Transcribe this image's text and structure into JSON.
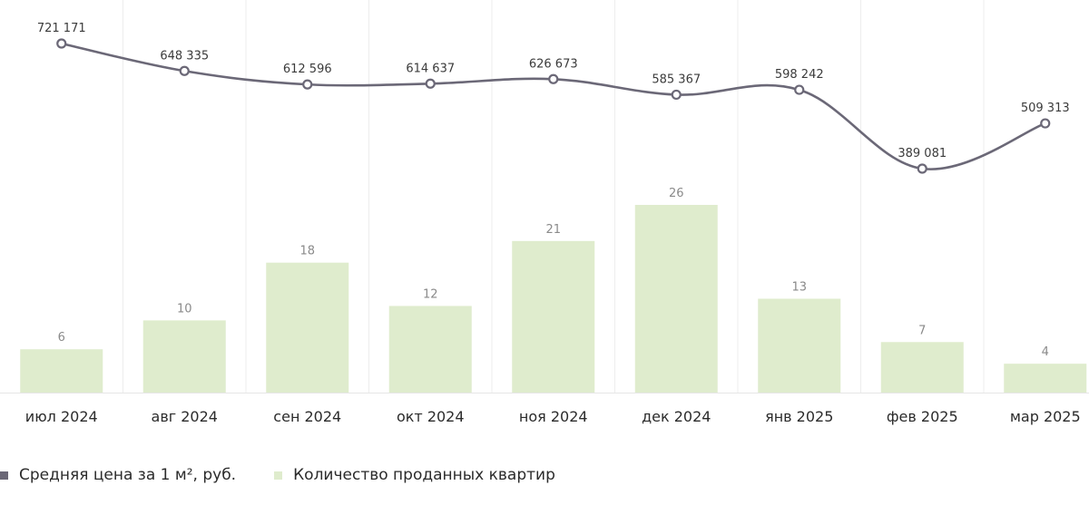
{
  "chart_data": {
    "type": "bar",
    "categories": [
      "июл 2024",
      "авг 2024",
      "сен 2024",
      "окт 2024",
      "ноя 2024",
      "дек 2024",
      "янв 2025",
      "фев 2025",
      "мар 2025"
    ],
    "series": [
      {
        "name": "Количество проданных квартир",
        "type": "bar",
        "values": [
          6,
          10,
          18,
          12,
          21,
          26,
          13,
          7,
          4
        ],
        "labels": [
          "6",
          "10",
          "18",
          "12",
          "21",
          "26",
          "13",
          "7",
          "4"
        ],
        "color": "#dfeccd"
      },
      {
        "name": "Средняя цена за 1 м², руб.",
        "type": "line",
        "values": [
          721171,
          648335,
          612596,
          614637,
          626673,
          585367,
          598242,
          389081,
          509313
        ],
        "labels": [
          "721 171",
          "648 335",
          "612 596",
          "614 637",
          "626 673",
          "585 367",
          "598 242",
          "389 081",
          "509 313"
        ],
        "color": "#6b6877"
      }
    ],
    "bar_ylim": [
      0,
      28
    ],
    "line_ylim": [
      0,
      721171
    ],
    "grid": "vertical",
    "legend_position": "bottom-left"
  }
}
